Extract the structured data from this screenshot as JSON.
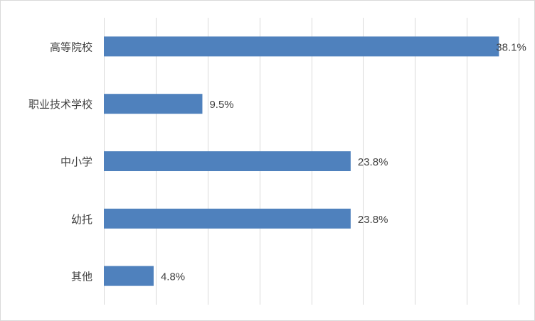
{
  "chart_data": {
    "type": "bar",
    "orientation": "horizontal",
    "categories": [
      "高等院校",
      "职业技术学校",
      "中小学",
      "幼托",
      "其他"
    ],
    "values": [
      38.1,
      9.5,
      23.8,
      23.8,
      4.8
    ],
    "value_labels": [
      "38.1%",
      "9.5%",
      "23.8%",
      "23.8%",
      "4.8%"
    ],
    "xlim": [
      0,
      40
    ],
    "grid": "vertical",
    "legend": "none",
    "bar_color": "#4f81bd"
  }
}
